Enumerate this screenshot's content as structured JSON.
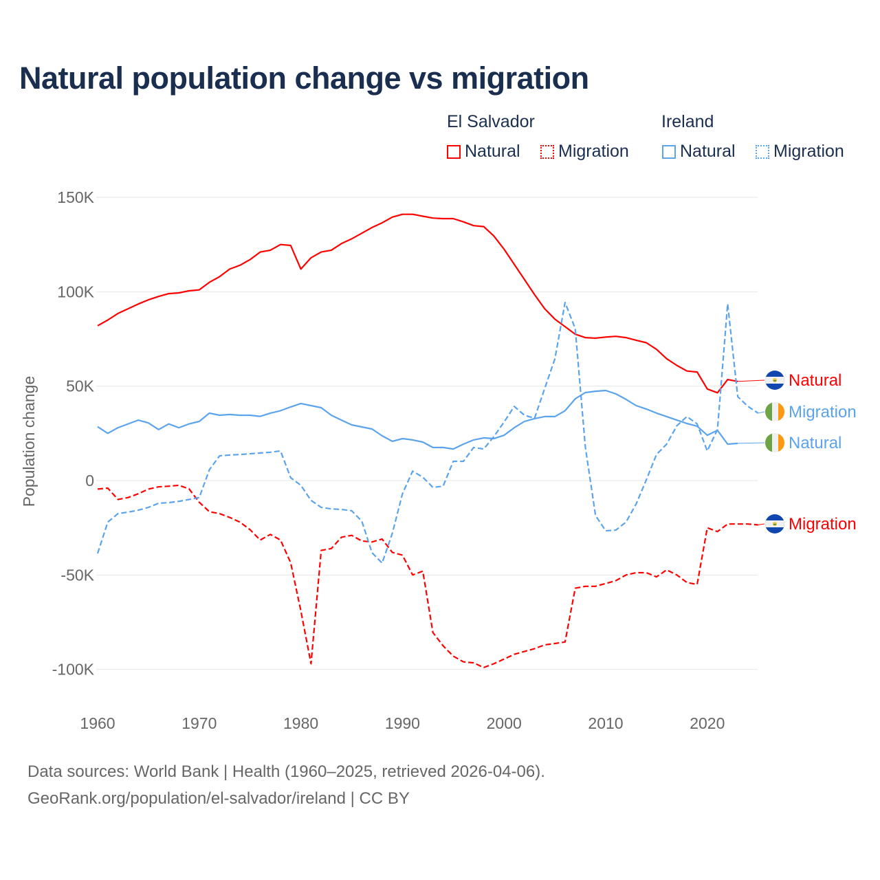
{
  "title": "Natural population change vs migration",
  "legend": {
    "groups": [
      {
        "name": "El Salvador",
        "color": "#ff0000",
        "items": [
          "Natural",
          "Migration"
        ]
      },
      {
        "name": "Ireland",
        "color": "#5ba3ec",
        "items": [
          "Natural",
          "Migration"
        ]
      }
    ]
  },
  "footer": {
    "line1": "Data sources: World Bank | Health (1960–2025, retrieved 2026-04-06).",
    "line2": "GeoRank.org/population/el-salvador/ireland | CC BY"
  },
  "chart_data": {
    "type": "line",
    "title": "Natural population change vs migration",
    "xlabel": "",
    "ylabel": "Population change",
    "xlim": [
      1960,
      2025
    ],
    "ylim": [
      -100000,
      150000
    ],
    "x_ticks": [
      1960,
      1970,
      1980,
      1990,
      2000,
      2010,
      2020
    ],
    "x_tick_labels": [
      "1960",
      "1970",
      "1980",
      "1990",
      "2000",
      "2010",
      "2020"
    ],
    "y_ticks": [
      150000,
      100000,
      50000,
      0,
      -50000,
      -100000
    ],
    "y_tick_labels": [
      "150K",
      "100K",
      "50K",
      "0",
      "-50K",
      "-100K"
    ],
    "grid": true,
    "legend_position": "top-right",
    "series": [
      {
        "name": "El Salvador Natural",
        "label": "Natural",
        "country": "El Salvador",
        "color": "#ff0000",
        "dash": "solid",
        "start_year": 1960,
        "values": [
          82000,
          85000,
          88500,
          91000,
          93500,
          95700,
          97500,
          99000,
          99400,
          100500,
          101000,
          105000,
          108000,
          112000,
          114000,
          117000,
          121000,
          122000,
          125000,
          124500,
          112000,
          118000,
          121000,
          122000,
          125500,
          128000,
          131000,
          134000,
          136500,
          139500,
          141000,
          141000,
          140000,
          139000,
          138700,
          138700,
          137000,
          135000,
          134500,
          129500,
          122500,
          114500,
          106500,
          98500,
          91000,
          85500,
          81500,
          77500,
          75700,
          75400,
          76000,
          76400,
          75700,
          74300,
          73000,
          69500,
          64500,
          61000,
          58000,
          57500,
          48500,
          46500,
          53500,
          52500
        ]
      },
      {
        "name": "El Salvador Migration",
        "label": "Migration",
        "country": "El Salvador",
        "color": "#ff0000",
        "dash": "dashed",
        "start_year": 1960,
        "values": [
          -4500,
          -4000,
          -10000,
          -9000,
          -7000,
          -4500,
          -3300,
          -3000,
          -2500,
          -4400,
          -11500,
          -16500,
          -17500,
          -19500,
          -22000,
          -26000,
          -31500,
          -28500,
          -31500,
          -43500,
          -69000,
          -97000,
          -37000,
          -36000,
          -30000,
          -29000,
          -32000,
          -32500,
          -31000,
          -38000,
          -39500,
          -50000,
          -48000,
          -80500,
          -87500,
          -93000,
          -96000,
          -96500,
          -99000,
          -97000,
          -94500,
          -92000,
          -90500,
          -89000,
          -87000,
          -86300,
          -85500,
          -57000,
          -56000,
          -56000,
          -54500,
          -53000,
          -50000,
          -48800,
          -48800,
          -51000,
          -47300,
          -50000,
          -54000,
          -55000,
          -25000,
          -27000,
          -23000,
          -23000,
          -23000,
          -23500
        ]
      },
      {
        "name": "Ireland Natural",
        "label": "Natural",
        "country": "Ireland",
        "color": "#5ba3ec",
        "dash": "solid",
        "start_year": 1960,
        "values": [
          28500,
          25000,
          28000,
          30000,
          32000,
          30500,
          27000,
          30000,
          28000,
          30000,
          31300,
          35700,
          34600,
          35000,
          34600,
          34600,
          34000,
          35700,
          37000,
          39000,
          40800,
          39700,
          38600,
          34600,
          32000,
          29500,
          28400,
          27300,
          23700,
          20800,
          22200,
          21500,
          20400,
          17500,
          17500,
          16700,
          19300,
          21500,
          22600,
          22200,
          24000,
          28000,
          31300,
          32800,
          33900,
          33900,
          37000,
          43300,
          46600,
          47300,
          47700,
          45900,
          43000,
          39700,
          37900,
          35700,
          33900,
          32000,
          30200,
          28800,
          24000,
          26600,
          19300,
          19700
        ]
      },
      {
        "name": "Ireland Migration",
        "label": "Migration",
        "country": "Ireland",
        "color": "#5ba3ec",
        "dash": "dashed",
        "start_year": 1960,
        "values": [
          -38600,
          -22000,
          -17500,
          -16700,
          -15700,
          -14200,
          -12000,
          -11700,
          -11000,
          -10000,
          -9000,
          5800,
          13100,
          13500,
          13800,
          14200,
          14600,
          15000,
          15700,
          1500,
          -2500,
          -10500,
          -14200,
          -15000,
          -15300,
          -16000,
          -21500,
          -38200,
          -43700,
          -28000,
          -7000,
          5000,
          1800,
          -3600,
          -3000,
          10200,
          10200,
          17500,
          16700,
          23300,
          31000,
          39300,
          34600,
          33000,
          48800,
          64400,
          94300,
          80500,
          17800,
          -18500,
          -26600,
          -26200,
          -22000,
          -12400,
          400,
          13800,
          19300,
          29000,
          33900,
          30000,
          15700,
          27000,
          93600,
          44400,
          39300,
          35700
        ]
      }
    ],
    "end_labels": [
      {
        "text": "Natural",
        "series": 0,
        "flag": "el-salvador"
      },
      {
        "text": "Migration",
        "series": 3,
        "flag": "ireland"
      },
      {
        "text": "Natural",
        "series": 2,
        "flag": "ireland"
      },
      {
        "text": "Migration",
        "series": 1,
        "flag": "el-salvador"
      }
    ]
  }
}
